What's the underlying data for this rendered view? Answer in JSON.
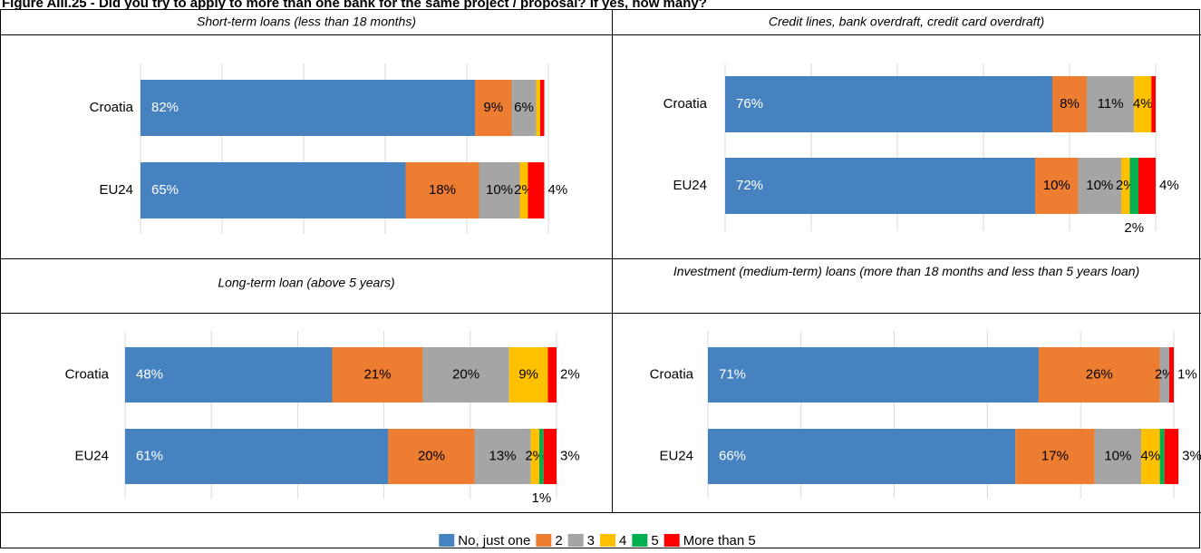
{
  "title": "Figure AIII.25 - Did you try to apply to more than one bank for the same project / proposal? If yes, how many?",
  "legend": {
    "names": [
      "No, just one",
      "2",
      "3",
      "4",
      "5",
      "More than 5"
    ],
    "colors": [
      "#4682c0",
      "#ed7d31",
      "#a5a5a5",
      "#ffc000",
      "#00b050",
      "#ff0000"
    ]
  },
  "chart_data": [
    {
      "type": "stacked-barh",
      "subtitle": "Short-term loans (less than 18 months)",
      "categories": [
        "Croatia",
        "EU24"
      ],
      "xlim": [
        0,
        100
      ],
      "xticks": [
        0,
        20,
        40,
        60,
        80,
        100
      ],
      "grid": true,
      "series": [
        {
          "values": [
            82,
            65
          ],
          "value_labels": [
            "82%",
            "65%"
          ]
        },
        {
          "values": [
            9,
            18
          ],
          "value_labels": [
            "9%",
            "18%"
          ]
        },
        {
          "values": [
            6,
            10
          ],
          "value_labels": [
            "6%",
            "10%"
          ]
        },
        {
          "values": [
            1,
            2
          ],
          "value_labels": [
            null,
            "2%"
          ]
        },
        {
          "values": [
            0,
            0
          ],
          "value_labels": [
            null,
            null
          ]
        },
        {
          "values": [
            1,
            4
          ],
          "value_labels": [
            null,
            "4%"
          ]
        }
      ]
    },
    {
      "type": "stacked-barh",
      "subtitle": "Credit lines, bank overdraft, credit card overdraft)",
      "categories": [
        "Croatia",
        "EU24"
      ],
      "xlim": [
        0,
        100
      ],
      "xticks": [
        0,
        20,
        40,
        60,
        80,
        100
      ],
      "grid": true,
      "series": [
        {
          "values": [
            76,
            72
          ],
          "value_labels": [
            "76%",
            "72%"
          ]
        },
        {
          "values": [
            8,
            10
          ],
          "value_labels": [
            "8%",
            "10%"
          ]
        },
        {
          "values": [
            11,
            10
          ],
          "value_labels": [
            "11%",
            "10%"
          ]
        },
        {
          "values": [
            4,
            2
          ],
          "value_labels": [
            "4%",
            "2%"
          ]
        },
        {
          "values": [
            0,
            2
          ],
          "value_labels": [
            null,
            "2%"
          ]
        },
        {
          "values": [
            1,
            4
          ],
          "value_labels": [
            null,
            "4%"
          ]
        }
      ]
    },
    {
      "type": "stacked-barh",
      "subtitle": "Long-term loan (above 5 years)",
      "categories": [
        "Croatia",
        "EU24"
      ],
      "xlim": [
        0,
        100
      ],
      "xticks": [
        0,
        20,
        40,
        60,
        80,
        100
      ],
      "grid": true,
      "series": [
        {
          "values": [
            48,
            61
          ],
          "value_labels": [
            "48%",
            "61%"
          ]
        },
        {
          "values": [
            21,
            20
          ],
          "value_labels": [
            "21%",
            "20%"
          ]
        },
        {
          "values": [
            20,
            13
          ],
          "value_labels": [
            "20%",
            "13%"
          ]
        },
        {
          "values": [
            9,
            2
          ],
          "value_labels": [
            "9%",
            "2%"
          ]
        },
        {
          "values": [
            0,
            1
          ],
          "value_labels": [
            null,
            "1%"
          ]
        },
        {
          "values": [
            2,
            3
          ],
          "value_labels": [
            "2%",
            "3%"
          ]
        }
      ]
    },
    {
      "type": "stacked-barh",
      "subtitle": "Investment (medium-term) loans (more than 18 months and less than 5 years loan)",
      "categories": [
        "Croatia",
        "EU24"
      ],
      "xlim": [
        0,
        100
      ],
      "xticks": [
        0,
        20,
        40,
        60,
        80,
        100
      ],
      "grid": true,
      "series": [
        {
          "values": [
            71,
            66
          ],
          "value_labels": [
            "71%",
            "66%"
          ]
        },
        {
          "values": [
            26,
            17
          ],
          "value_labels": [
            "26%",
            "17%"
          ]
        },
        {
          "values": [
            2,
            10
          ],
          "value_labels": [
            "2%",
            "10%"
          ]
        },
        {
          "values": [
            0,
            4
          ],
          "value_labels": [
            null,
            "4%"
          ]
        },
        {
          "values": [
            0,
            1
          ],
          "value_labels": [
            null,
            null
          ]
        },
        {
          "values": [
            1,
            3
          ],
          "value_labels": [
            "1%",
            "3%"
          ]
        }
      ]
    }
  ]
}
